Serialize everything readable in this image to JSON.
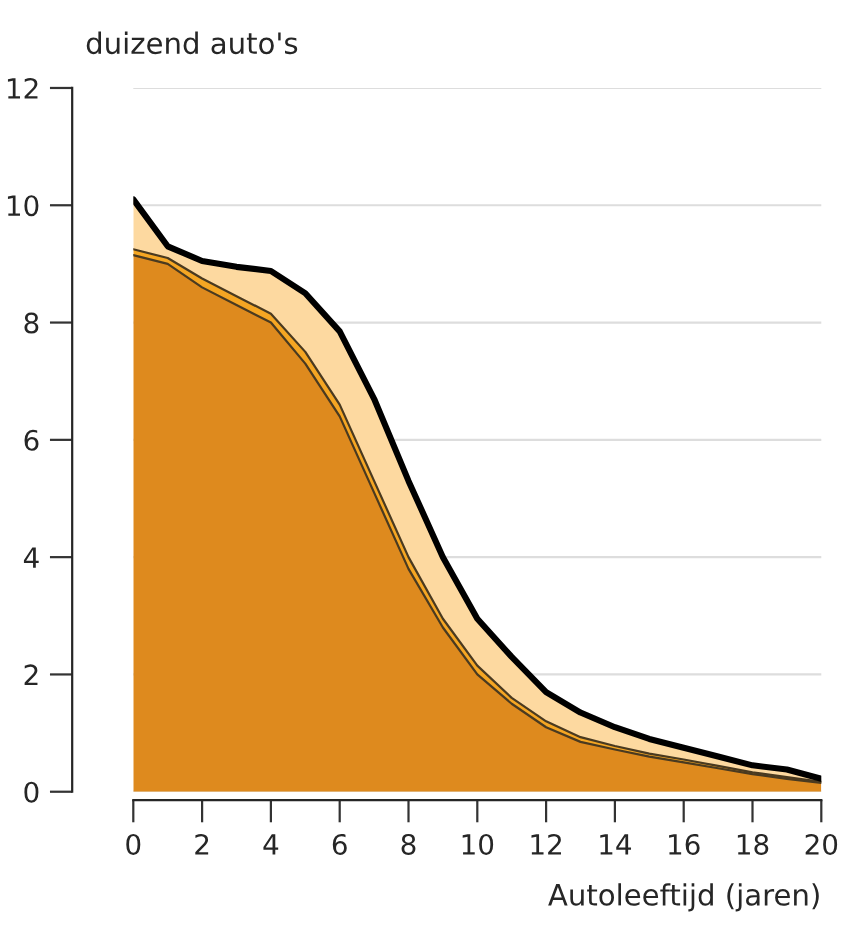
{
  "chart_data": {
    "type": "area",
    "stacked": true,
    "ylabel": "duizend auto's",
    "xlabel": "Autoleeftijd (jaren)",
    "x": [
      0,
      1,
      2,
      3,
      4,
      5,
      6,
      7,
      8,
      9,
      10,
      11,
      12,
      13,
      14,
      15,
      16,
      17,
      18,
      19,
      20
    ],
    "series": [
      {
        "color": "#de8a1e",
        "values": [
          9.15,
          9.0,
          8.6,
          8.3,
          8.0,
          7.3,
          6.4,
          5.1,
          3.8,
          2.8,
          2.0,
          1.5,
          1.1,
          0.85,
          0.72,
          0.6,
          0.5,
          0.4,
          0.3,
          0.22,
          0.15
        ]
      },
      {
        "color": "#f5a623",
        "values": [
          0.1,
          0.1,
          0.15,
          0.15,
          0.15,
          0.2,
          0.2,
          0.2,
          0.2,
          0.15,
          0.15,
          0.1,
          0.1,
          0.08,
          0.06,
          0.05,
          0.05,
          0.04,
          0.03,
          0.03,
          0.02
        ]
      },
      {
        "color": "#fdd9a0",
        "values": [
          0.85,
          0.2,
          0.3,
          0.5,
          0.73,
          1.0,
          1.25,
          1.4,
          1.3,
          1.05,
          0.8,
          0.7,
          0.5,
          0.42,
          0.32,
          0.25,
          0.2,
          0.16,
          0.12,
          0.13,
          0.05
        ]
      }
    ],
    "xlim": [
      0,
      20
    ],
    "xticks": [
      0,
      2,
      4,
      6,
      8,
      10,
      12,
      14,
      16,
      18,
      20
    ],
    "ylim": [
      0,
      12
    ],
    "yticks": [
      0,
      2,
      4,
      6,
      8,
      10,
      12
    ],
    "grid": "y"
  }
}
